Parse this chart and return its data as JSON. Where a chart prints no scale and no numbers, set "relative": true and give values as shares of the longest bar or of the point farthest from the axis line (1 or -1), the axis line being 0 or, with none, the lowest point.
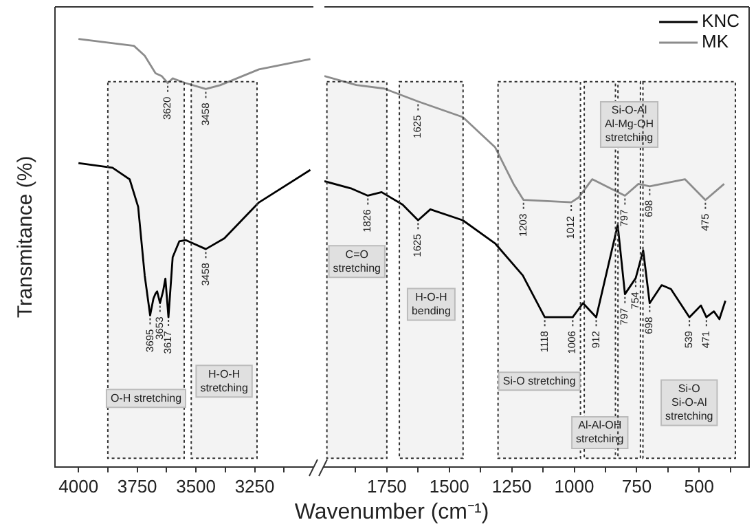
{
  "chart_data": [
    {
      "type": "line",
      "ylabel": "Transmitance (%)",
      "relative": true,
      "marker": "none",
      "xlim": [
        4100,
        3000
      ],
      "xticks": [
        4000,
        {
          "value": 3875,
          "label": null
        },
        3750,
        {
          "value": 3625,
          "label": null
        },
        3500,
        {
          "value": 3375,
          "label": null
        },
        3250,
        {
          "value": 3125,
          "label": null
        }
      ],
      "series": [
        {
          "color": "#000000",
          "x": [
            4000,
            3855,
            3782,
            3746,
            3718,
            3695,
            3681,
            3672,
            3665,
            3653,
            3640,
            3630,
            3617,
            3599,
            3571,
            3544,
            3458,
            3379,
            3232,
            3013
          ],
          "values": [
            0.71,
            0.699,
            0.672,
            0.608,
            0.447,
            0.354,
            0.393,
            0.405,
            0.41,
            0.383,
            0.41,
            0.44,
            0.35,
            0.49,
            0.527,
            0.53,
            0.509,
            0.534,
            0.618,
            0.694
          ]
        },
        {
          "color": "#8c8c8c",
          "x": [
            4000,
            3764,
            3718,
            3672,
            3645,
            3620,
            3599,
            3544,
            3458,
            3397,
            3232,
            3013
          ],
          "values": [
            1.0,
            0.984,
            0.961,
            0.92,
            0.913,
            0.897,
            0.908,
            0.897,
            0.883,
            0.892,
            0.929,
            0.953
          ]
        }
      ],
      "bands": [
        {
          "axis": "x",
          "from": 3875,
          "to": 3550,
          "label": "O-H stretching"
        },
        {
          "axis": "x",
          "from": 3520,
          "to": 3240,
          "label": "H-O-H stretching"
        }
      ],
      "annotations": [
        {
          "text": "3620",
          "x": 3620,
          "y": 0.897
        },
        {
          "text": "3458",
          "x": 3458,
          "y": 0.883
        },
        {
          "text": "3695",
          "x": 3695,
          "y": 0.354
        },
        {
          "text": "3653",
          "x": 3653,
          "y": 0.383
        },
        {
          "text": "3617",
          "x": 3617,
          "y": 0.35
        },
        {
          "text": "3458",
          "x": 3458,
          "y": 0.509
        }
      ]
    },
    {
      "type": "line",
      "xlabel": "Wavenumber (cm⁻¹)",
      "relative": true,
      "marker": "none",
      "legend": "top right",
      "xlim": [
        2000,
        300
      ],
      "xticks": [
        {
          "value": 1875,
          "label": null
        },
        1750,
        {
          "value": 1625,
          "label": null
        },
        1500,
        {
          "value": 1375,
          "label": null
        },
        1250,
        {
          "value": 1125,
          "label": null
        },
        1000,
        {
          "value": 875,
          "label": null
        },
        750,
        {
          "value": 625,
          "label": null
        },
        500,
        {
          "value": 375,
          "label": null
        }
      ],
      "series": [
        {
          "name": "KNC",
          "color": "#000000",
          "x": [
            2000,
            1891,
            1826,
            1771,
            1687,
            1625,
            1576,
            1446,
            1317,
            1206,
            1118,
            1006,
            965,
            912,
            826,
            797,
            754,
            724,
            698,
            650,
            613,
            539,
            493,
            471,
            441,
            419,
            395
          ],
          "values": [
            0.731,
            0.712,
            0.694,
            0.703,
            0.671,
            0.631,
            0.659,
            0.631,
            0.572,
            0.49,
            0.383,
            0.383,
            0.419,
            0.383,
            0.619,
            0.442,
            0.483,
            0.554,
            0.419,
            0.465,
            0.455,
            0.383,
            0.413,
            0.383,
            0.398,
            0.378,
            0.425
          ]
        },
        {
          "name": "MK",
          "color": "#8c8c8c",
          "x": [
            2000,
            1872,
            1761,
            1625,
            1446,
            1317,
            1243,
            1203,
            1012,
            983,
            928,
            797,
            743,
            698,
            557,
            475,
            400
          ],
          "values": [
            1.0,
            0.977,
            0.968,
            0.935,
            0.895,
            0.818,
            0.724,
            0.683,
            0.677,
            0.689,
            0.736,
            0.694,
            0.724,
            0.718,
            0.736,
            0.683,
            0.724
          ]
        }
      ],
      "bands": [
        {
          "axis": "x",
          "from": 1990,
          "to": 1750,
          "label": "C=O stretching"
        },
        {
          "axis": "x",
          "from": 1700,
          "to": 1445,
          "label": "H-O-H bending"
        },
        {
          "axis": "x",
          "from": 1305,
          "to": 975,
          "label": "Si-O stretching"
        },
        {
          "axis": "x",
          "from": 960,
          "to": 835,
          "label": "Al-Al-OH stretching"
        },
        {
          "axis": "x",
          "from": 825,
          "to": 735,
          "label": "Si-O-Al Al-Mg-OH stretching"
        },
        {
          "axis": "x",
          "from": 725,
          "to": 355,
          "label": "Si-O Si-O-Al stretching"
        }
      ],
      "annotations": [
        {
          "text": "1625",
          "x": 1625,
          "y": 0.935
        },
        {
          "text": "1203",
          "x": 1203,
          "y": 0.683
        },
        {
          "text": "1012",
          "x": 1012,
          "y": 0.677
        },
        {
          "text": "797",
          "x": 797,
          "y": 0.694
        },
        {
          "text": "698",
          "x": 698,
          "y": 0.718
        },
        {
          "text": "475",
          "x": 475,
          "y": 0.683
        },
        {
          "text": "1826",
          "x": 1826,
          "y": 0.694
        },
        {
          "text": "1625",
          "x": 1625,
          "y": 0.631
        },
        {
          "text": "1118",
          "x": 1118,
          "y": 0.383
        },
        {
          "text": "1006",
          "x": 1006,
          "y": 0.383
        },
        {
          "text": "912",
          "x": 912,
          "y": 0.383
        },
        {
          "text": "797",
          "x": 797,
          "y": 0.442
        },
        {
          "text": "754",
          "x": 754,
          "y": 0.483
        },
        {
          "text": "698",
          "x": 698,
          "y": 0.419
        },
        {
          "text": "539",
          "x": 539,
          "y": 0.383
        },
        {
          "text": "471",
          "x": 471,
          "y": 0.383
        }
      ]
    }
  ]
}
